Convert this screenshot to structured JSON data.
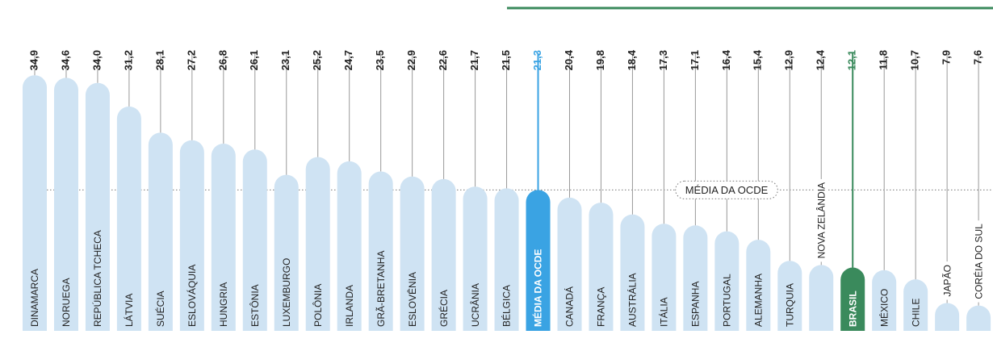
{
  "chart_data": {
    "type": "bar",
    "categories": [
      "DINAMARCA",
      "NORUEGA",
      "REPÚBLICA TCHECA",
      "LÁTVIA",
      "SUÉCIA",
      "ESLOVÁQUIA",
      "HUNGRIA",
      "ESTÔNIA",
      "LUXEMBURGO",
      "POLÔNIA",
      "IRLANDA",
      "GRÃ-BRETANHA",
      "ESLOVÊNIA",
      "GRÉCIA",
      "UCRÂNIA",
      "BÉLGICA",
      "MÉDIA DA OCDE",
      "CANADÁ",
      "FRANÇA",
      "AUSTRÁLIA",
      "ITÁLIA",
      "ESPANHA",
      "PORTUGAL",
      "ALEMANHA",
      "TURQUIA",
      "NOVA ZELÂNDIA",
      "BRASIL",
      "MÉXICO",
      "CHILE",
      "JAPÃO",
      "CORÉIA DO SUL"
    ],
    "values": [
      34.9,
      34.6,
      34.0,
      31.2,
      28.1,
      27.2,
      26.8,
      26.1,
      23.1,
      25.2,
      24.7,
      23.5,
      22.9,
      22.6,
      21.7,
      21.5,
      21.3,
      20.4,
      19.8,
      18.4,
      17.3,
      17.1,
      16.4,
      15.4,
      12.9,
      12.4,
      12.1,
      11.8,
      10.7,
      7.9,
      7.6
    ],
    "value_labels": [
      "34,9",
      "34,6",
      "34,0",
      "31,2",
      "28,1",
      "27,2",
      "26,8",
      "26,1",
      "23,1",
      "25,2",
      "24,7",
      "23,5",
      "22,9",
      "22,6",
      "21,7",
      "21,5",
      "21,3",
      "20,4",
      "19,8",
      "18,4",
      "17,3",
      "17,1",
      "16,4",
      "15,4",
      "12,9",
      "12,4",
      "12,1",
      "11,8",
      "10,7",
      "7,9",
      "7,6"
    ],
    "colors": [
      "#cfe3f3",
      "#cfe3f3",
      "#cfe3f3",
      "#cfe3f3",
      "#cfe3f3",
      "#cfe3f3",
      "#cfe3f3",
      "#cfe3f3",
      "#cfe3f3",
      "#cfe3f3",
      "#cfe3f3",
      "#cfe3f3",
      "#cfe3f3",
      "#cfe3f3",
      "#cfe3f3",
      "#cfe3f3",
      "#3aa3e3",
      "#cfe3f3",
      "#cfe3f3",
      "#cfe3f3",
      "#cfe3f3",
      "#cfe3f3",
      "#cfe3f3",
      "#cfe3f3",
      "#cfe3f3",
      "#cfe3f3",
      "#3a8a5c",
      "#cfe3f3",
      "#cfe3f3",
      "#cfe3f3",
      "#cfe3f3"
    ],
    "reference_line": {
      "label": "MÉDIA DA OCDE",
      "value": 21.3
    }
  }
}
